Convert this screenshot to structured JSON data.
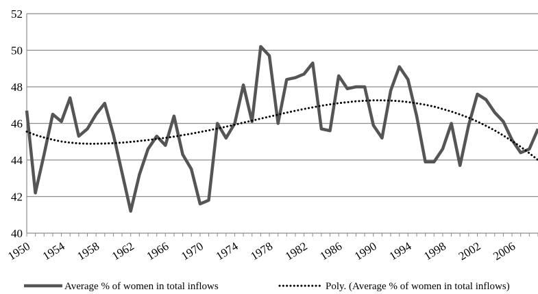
{
  "chart_data": {
    "type": "line",
    "title": "",
    "xlabel": "",
    "ylabel": "",
    "x": [
      1950,
      1951,
      1952,
      1953,
      1954,
      1955,
      1956,
      1957,
      1958,
      1959,
      1960,
      1961,
      1962,
      1963,
      1964,
      1965,
      1966,
      1967,
      1968,
      1969,
      1970,
      1971,
      1972,
      1973,
      1974,
      1975,
      1976,
      1977,
      1978,
      1979,
      1980,
      1981,
      1982,
      1983,
      1984,
      1985,
      1986,
      1987,
      1988,
      1989,
      1990,
      1991,
      1992,
      1993,
      1994,
      1995,
      1996,
      1997,
      1998,
      1999,
      2000,
      2001,
      2002,
      2003,
      2004,
      2005,
      2006,
      2007,
      2008,
      2009
    ],
    "xlim": [
      1950,
      2009
    ],
    "ylim": [
      40,
      52
    ],
    "y_ticks": [
      40,
      42,
      44,
      46,
      48,
      50,
      52
    ],
    "x_tick_labels": [
      "1950",
      "1954",
      "1958",
      "1962",
      "1966",
      "1970",
      "1974",
      "1978",
      "1982",
      "1986",
      "1990",
      "1994",
      "1998",
      "2002",
      "2006"
    ],
    "grid": "horizontal",
    "legend_position": "bottom",
    "series": [
      {
        "name": "Average  % of women in total inflows",
        "style": "solid",
        "color": "#555555",
        "values": [
          46.7,
          42.2,
          44.3,
          46.5,
          46.1,
          47.4,
          45.3,
          45.7,
          46.5,
          47.1,
          45.4,
          43.3,
          41.2,
          43.2,
          44.6,
          45.3,
          44.8,
          46.4,
          44.3,
          43.5,
          41.6,
          41.8,
          46.0,
          45.2,
          46.0,
          48.1,
          46.1,
          50.2,
          49.7,
          46.0,
          48.4,
          48.5,
          48.7,
          49.3,
          45.7,
          45.6,
          48.6,
          47.9,
          48.0,
          48.0,
          45.9,
          45.2,
          47.8,
          49.1,
          48.4,
          46.4,
          43.9,
          43.9,
          44.6,
          46.0,
          43.7,
          45.9,
          47.6,
          47.3,
          46.6,
          46.1,
          45.1,
          44.4,
          44.6,
          45.7
        ]
      },
      {
        "name": "Poly.  (Average  % of women in total inflows)",
        "style": "dotted",
        "color": "#000000",
        "values": [
          45.55,
          45.37,
          45.23,
          45.11,
          45.01,
          44.95,
          44.91,
          44.89,
          44.89,
          44.9,
          44.92,
          44.95,
          44.99,
          45.04,
          45.09,
          45.15,
          45.21,
          45.28,
          45.36,
          45.44,
          45.53,
          45.62,
          45.72,
          45.82,
          45.93,
          46.04,
          46.15,
          46.26,
          46.37,
          46.48,
          46.59,
          46.69,
          46.79,
          46.88,
          46.97,
          47.04,
          47.11,
          47.16,
          47.21,
          47.24,
          47.26,
          47.26,
          47.25,
          47.22,
          47.17,
          47.1,
          47.02,
          46.92,
          46.79,
          46.65,
          46.49,
          46.31,
          46.1,
          45.87,
          45.62,
          45.34,
          45.04,
          44.72,
          44.37,
          44.0
        ]
      }
    ]
  }
}
